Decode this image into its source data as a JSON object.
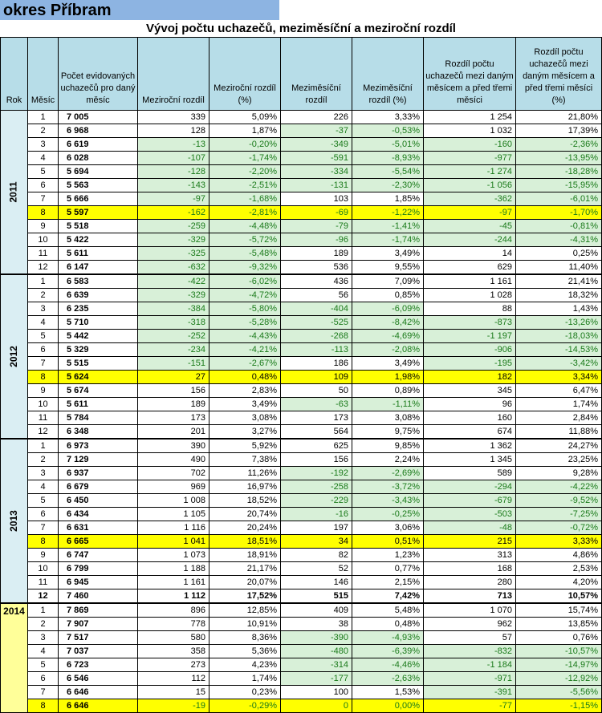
{
  "title": "okres Příbram",
  "subtitle": "Vývoj počtu uchazečů, meziměsíční a meziroční rozdíl",
  "headers": {
    "year": "Rok",
    "month": "Měsíc",
    "count": "Počet evidovaných uchazečů pro daný měsíc",
    "yoy": "Meziroční rozdíl",
    "yoy_pct": "Meziroční rozdíl (%)",
    "mom": "Meziměsíční rozdíl",
    "mom_pct": "Meziměsíční rozdíl (%)",
    "diff3": "Rozdíl počtu uchazečů mezi daným měsícem a před třemi měsíci",
    "diff3_pct": "Rozdíl počtu uchazečů mezi daným měsícem a před třemi měsíci (%)"
  },
  "colors": {
    "title_bar": "#8db4e2",
    "header_bg": "#b7dde8",
    "year_bg": "#daeef3",
    "year_2014_bg": "#ffff99",
    "highlight": "#ffff00",
    "negative_bg": "#d8f0d8",
    "negative_text": "#1a7a1a"
  },
  "years": [
    {
      "year": "2011",
      "rows": [
        [
          "1",
          "7 005",
          "339",
          "5,09%",
          "226",
          "3,33%",
          "1 254",
          "21,80%"
        ],
        [
          "2",
          "6 968",
          "128",
          "1,87%",
          "-37",
          "-0,53%",
          "1 032",
          "17,39%"
        ],
        [
          "3",
          "6 619",
          "-13",
          "-0,20%",
          "-349",
          "-5,01%",
          "-160",
          "-2,36%"
        ],
        [
          "4",
          "6 028",
          "-107",
          "-1,74%",
          "-591",
          "-8,93%",
          "-977",
          "-13,95%"
        ],
        [
          "5",
          "5 694",
          "-128",
          "-2,20%",
          "-334",
          "-5,54%",
          "-1 274",
          "-18,28%"
        ],
        [
          "6",
          "5 563",
          "-143",
          "-2,51%",
          "-131",
          "-2,30%",
          "-1 056",
          "-15,95%"
        ],
        [
          "7",
          "5 666",
          "-97",
          "-1,68%",
          "103",
          "1,85%",
          "-362",
          "-6,01%"
        ],
        [
          "8",
          "5 597",
          "-162",
          "-2,81%",
          "-69",
          "-1,22%",
          "-97",
          "-1,70%"
        ],
        [
          "9",
          "5 518",
          "-259",
          "-4,48%",
          "-79",
          "-1,41%",
          "-45",
          "-0,81%"
        ],
        [
          "10",
          "5 422",
          "-329",
          "-5,72%",
          "-96",
          "-1,74%",
          "-244",
          "-4,31%"
        ],
        [
          "11",
          "5 611",
          "-325",
          "-5,48%",
          "189",
          "3,49%",
          "14",
          "0,25%"
        ],
        [
          "12",
          "6 147",
          "-632",
          "-9,32%",
          "536",
          "9,55%",
          "629",
          "11,40%"
        ]
      ]
    },
    {
      "year": "2012",
      "rows": [
        [
          "1",
          "6 583",
          "-422",
          "-6,02%",
          "436",
          "7,09%",
          "1 161",
          "21,41%"
        ],
        [
          "2",
          "6 639",
          "-329",
          "-4,72%",
          "56",
          "0,85%",
          "1 028",
          "18,32%"
        ],
        [
          "3",
          "6 235",
          "-384",
          "-5,80%",
          "-404",
          "-6,09%",
          "88",
          "1,43%"
        ],
        [
          "4",
          "5 710",
          "-318",
          "-5,28%",
          "-525",
          "-8,42%",
          "-873",
          "-13,26%"
        ],
        [
          "5",
          "5 442",
          "-252",
          "-4,43%",
          "-268",
          "-4,69%",
          "-1 197",
          "-18,03%"
        ],
        [
          "6",
          "5 329",
          "-234",
          "-4,21%",
          "-113",
          "-2,08%",
          "-906",
          "-14,53%"
        ],
        [
          "7",
          "5 515",
          "-151",
          "-2,67%",
          "186",
          "3,49%",
          "-195",
          "-3,42%"
        ],
        [
          "8",
          "5 624",
          "27",
          "0,48%",
          "109",
          "1,98%",
          "182",
          "3,34%"
        ],
        [
          "9",
          "5 674",
          "156",
          "2,83%",
          "50",
          "0,89%",
          "345",
          "6,47%"
        ],
        [
          "10",
          "5 611",
          "189",
          "3,49%",
          "-63",
          "-1,11%",
          "96",
          "1,74%"
        ],
        [
          "11",
          "5 784",
          "173",
          "3,08%",
          "173",
          "3,08%",
          "160",
          "2,84%"
        ],
        [
          "12",
          "6 348",
          "201",
          "3,27%",
          "564",
          "9,75%",
          "674",
          "11,88%"
        ]
      ]
    },
    {
      "year": "2013",
      "rows": [
        [
          "1",
          "6 973",
          "390",
          "5,92%",
          "625",
          "9,85%",
          "1 362",
          "24,27%"
        ],
        [
          "2",
          "7 129",
          "490",
          "7,38%",
          "156",
          "2,24%",
          "1 345",
          "23,25%"
        ],
        [
          "3",
          "6 937",
          "702",
          "11,26%",
          "-192",
          "-2,69%",
          "589",
          "9,28%"
        ],
        [
          "4",
          "6 679",
          "969",
          "16,97%",
          "-258",
          "-3,72%",
          "-294",
          "-4,22%"
        ],
        [
          "5",
          "6 450",
          "1 008",
          "18,52%",
          "-229",
          "-3,43%",
          "-679",
          "-9,52%"
        ],
        [
          "6",
          "6 434",
          "1 105",
          "20,74%",
          "-16",
          "-0,25%",
          "-503",
          "-7,25%"
        ],
        [
          "7",
          "6 631",
          "1 116",
          "20,24%",
          "197",
          "3,06%",
          "-48",
          "-0,72%"
        ],
        [
          "8",
          "6 665",
          "1 041",
          "18,51%",
          "34",
          "0,51%",
          "215",
          "3,33%"
        ],
        [
          "9",
          "6 747",
          "1 073",
          "18,91%",
          "82",
          "1,23%",
          "313",
          "4,86%"
        ],
        [
          "10",
          "6 799",
          "1 188",
          "21,17%",
          "52",
          "0,77%",
          "168",
          "2,53%"
        ],
        [
          "11",
          "6 945",
          "1 161",
          "20,07%",
          "146",
          "2,15%",
          "280",
          "4,20%"
        ],
        [
          "12",
          "7 460",
          "1 112",
          "17,52%",
          "515",
          "7,42%",
          "713",
          "10,57%"
        ]
      ]
    },
    {
      "year": "2014",
      "rows": [
        [
          "1",
          "7 869",
          "896",
          "12,85%",
          "409",
          "5,48%",
          "1 070",
          "15,74%"
        ],
        [
          "2",
          "7 907",
          "778",
          "10,91%",
          "38",
          "0,48%",
          "962",
          "13,85%"
        ],
        [
          "3",
          "7 517",
          "580",
          "8,36%",
          "-390",
          "-4,93%",
          "57",
          "0,76%"
        ],
        [
          "4",
          "7 037",
          "358",
          "5,36%",
          "-480",
          "-6,39%",
          "-832",
          "-10,57%"
        ],
        [
          "5",
          "6 723",
          "273",
          "4,23%",
          "-314",
          "-4,46%",
          "-1 184",
          "-14,97%"
        ],
        [
          "6",
          "6 546",
          "112",
          "1,74%",
          "-177",
          "-2,63%",
          "-971",
          "-12,92%"
        ],
        [
          "7",
          "6 646",
          "15",
          "0,23%",
          "100",
          "1,53%",
          "-391",
          "-5,56%"
        ],
        [
          "8",
          "6 646",
          "-19",
          "-0,29%",
          "0",
          "0,00%",
          "-77",
          "-1,15%"
        ]
      ]
    }
  ],
  "highlight_month": "8",
  "bold_rows": [
    "2013-12"
  ]
}
